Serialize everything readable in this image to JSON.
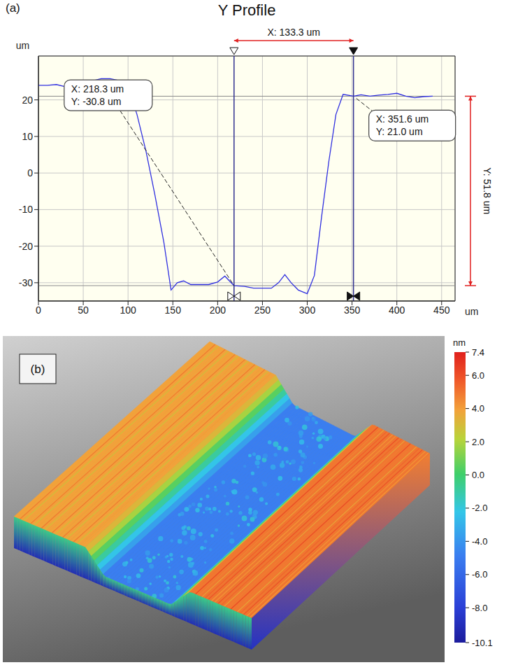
{
  "chart_data": [
    {
      "type": "line",
      "label": "(a)",
      "title": "Y Profile",
      "x_label": "um",
      "y_label": "um",
      "x": [
        0,
        10,
        20,
        30,
        40,
        50,
        60,
        70,
        80,
        88,
        95,
        102,
        110,
        120,
        130,
        140,
        148,
        155,
        162,
        170,
        180,
        190,
        200,
        208,
        218.3,
        230,
        240,
        250,
        260,
        268,
        275,
        282,
        290,
        300,
        308,
        316,
        324,
        332,
        340,
        351.6,
        360,
        370,
        380,
        390,
        400,
        410,
        420,
        430,
        440
      ],
      "values": [
        24,
        24,
        24.2,
        23.6,
        24,
        24.5,
        25.2,
        25.8,
        25.8,
        25.4,
        23.5,
        22,
        16,
        6,
        -6,
        -19,
        -32,
        -30,
        -29.5,
        -30.5,
        -30.5,
        -30.5,
        -29.8,
        -28.2,
        -30.8,
        -31,
        -31.5,
        -31.5,
        -31.5,
        -30,
        -27.8,
        -30,
        -32,
        -33,
        -28,
        -12,
        3,
        16,
        21.5,
        21.0,
        21.4,
        21,
        21.3,
        21.5,
        21.8,
        21,
        20.6,
        20.9,
        21
      ],
      "color": "#3030e0",
      "xlim": [
        0,
        465
      ],
      "xticks": [
        0,
        50,
        100,
        150,
        200,
        250,
        300,
        350,
        400,
        450
      ],
      "ylim": [
        -35,
        32
      ],
      "yticks": [
        -30,
        -20,
        -10,
        0,
        10,
        20
      ],
      "grid": true,
      "cursors": [
        {
          "x": 218.3,
          "y": -30.8,
          "text": [
            "X: 218.3 um",
            "Y: -30.8 um"
          ]
        },
        {
          "x": 351.6,
          "y": 21.0,
          "text": [
            "X: 351.6 um",
            "Y: 21.0 um"
          ]
        }
      ],
      "measure": {
        "x_text": "X: 133.3 um",
        "y_text": "Y: 51.8 um"
      }
    },
    {
      "type": "surface",
      "label": "(b)",
      "colorbar": {
        "label": "nm",
        "range": [
          -10.1,
          7.4
        ],
        "ticks": [
          7.4,
          {
            "value": 6,
            "label": "6.0"
          },
          {
            "value": 4,
            "label": "4.0"
          },
          {
            "value": 2,
            "label": "2.0"
          },
          {
            "value": 0,
            "label": "0.0"
          },
          {
            "value": -2,
            "label": "-2.0"
          },
          {
            "value": -4,
            "label": "-4.0"
          },
          {
            "value": -6,
            "label": "-6.0"
          },
          {
            "value": -8,
            "label": "-8.0"
          },
          -10.1
        ]
      }
    }
  ]
}
